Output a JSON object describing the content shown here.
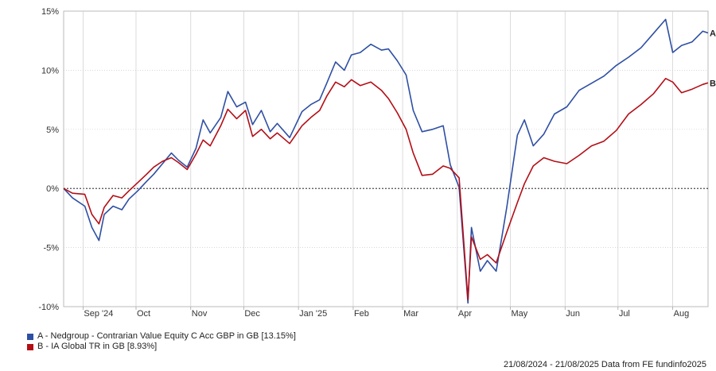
{
  "chart_data": {
    "type": "line",
    "y_unit": "%",
    "ylim": [
      -10,
      15
    ],
    "yticks": [
      15,
      10,
      5,
      0,
      -5,
      -10
    ],
    "ytick_labels": [
      "15%",
      "10%",
      "5%",
      "0%",
      "-5%",
      "-10%"
    ],
    "xlim": [
      "2024-08-21",
      "2025-08-21"
    ],
    "xticks": [
      "2024-09-01",
      "2024-10-01",
      "2024-11-01",
      "2024-12-01",
      "2025-01-01",
      "2025-02-01",
      "2025-03-01",
      "2025-04-01",
      "2025-05-01",
      "2025-06-01",
      "2025-07-01",
      "2025-08-01"
    ],
    "xtick_labels": [
      "Sep '24",
      "Oct",
      "Nov",
      "Dec",
      "Jan '25",
      "Feb",
      "Mar",
      "Apr",
      "May",
      "Jun",
      "Jul",
      "Aug"
    ],
    "grid": true,
    "zero_line": "dotted",
    "series": [
      {
        "name": "A - Nedgroup - Contrarian Value Equity C Acc GBP in GB [13.15%]",
        "end_label": "A",
        "color": "#2e4fa3",
        "x": [
          "2024-08-21",
          "2024-08-26",
          "2024-09-02",
          "2024-09-06",
          "2024-09-10",
          "2024-09-13",
          "2024-09-18",
          "2024-09-23",
          "2024-09-27",
          "2024-10-02",
          "2024-10-07",
          "2024-10-11",
          "2024-10-16",
          "2024-10-21",
          "2024-10-25",
          "2024-10-30",
          "2024-11-04",
          "2024-11-08",
          "2024-11-12",
          "2024-11-18",
          "2024-11-22",
          "2024-11-27",
          "2024-12-02",
          "2024-12-06",
          "2024-12-11",
          "2024-12-16",
          "2024-12-20",
          "2024-12-27",
          "2025-01-03",
          "2025-01-08",
          "2025-01-13",
          "2025-01-17",
          "2025-01-22",
          "2025-01-27",
          "2025-01-31",
          "2025-02-05",
          "2025-02-11",
          "2025-02-17",
          "2025-02-21",
          "2025-02-26",
          "2025-03-03",
          "2025-03-07",
          "2025-03-12",
          "2025-03-18",
          "2025-03-24",
          "2025-03-28",
          "2025-04-02",
          "2025-04-07",
          "2025-04-09",
          "2025-04-14",
          "2025-04-18",
          "2025-04-23",
          "2025-04-29",
          "2025-05-05",
          "2025-05-09",
          "2025-05-14",
          "2025-05-20",
          "2025-05-26",
          "2025-06-02",
          "2025-06-09",
          "2025-06-16",
          "2025-06-23",
          "2025-06-30",
          "2025-07-07",
          "2025-07-14",
          "2025-07-21",
          "2025-07-28",
          "2025-08-01",
          "2025-08-06",
          "2025-08-12",
          "2025-08-18",
          "2025-08-21"
        ],
        "values": [
          0.0,
          -0.8,
          -1.5,
          -3.3,
          -4.4,
          -2.2,
          -1.5,
          -1.8,
          -0.9,
          -0.2,
          0.6,
          1.2,
          2.1,
          3.0,
          2.4,
          1.8,
          3.4,
          5.8,
          4.7,
          6.0,
          8.2,
          6.9,
          7.3,
          5.4,
          6.6,
          4.8,
          5.5,
          4.3,
          6.5,
          7.1,
          7.5,
          8.9,
          10.7,
          10.0,
          11.3,
          11.5,
          12.2,
          11.7,
          11.8,
          10.8,
          9.6,
          6.6,
          4.8,
          5.0,
          5.3,
          2.0,
          0.1,
          -9.7,
          -3.3,
          -7.0,
          -6.1,
          -7.0,
          -1.6,
          4.5,
          5.8,
          3.6,
          4.6,
          6.3,
          6.9,
          8.3,
          8.9,
          9.5,
          10.4,
          11.1,
          11.9,
          13.1,
          14.3,
          11.5,
          12.1,
          12.4,
          13.3,
          13.15
        ]
      },
      {
        "name": "B - IA Global TR in GB [8.93%]",
        "end_label": "B",
        "color": "#b30e16",
        "x": [
          "2024-08-21",
          "2024-08-26",
          "2024-09-02",
          "2024-09-06",
          "2024-09-10",
          "2024-09-13",
          "2024-09-18",
          "2024-09-23",
          "2024-09-27",
          "2024-10-02",
          "2024-10-07",
          "2024-10-11",
          "2024-10-16",
          "2024-10-21",
          "2024-10-25",
          "2024-10-30",
          "2024-11-04",
          "2024-11-08",
          "2024-11-12",
          "2024-11-18",
          "2024-11-22",
          "2024-11-27",
          "2024-12-02",
          "2024-12-06",
          "2024-12-11",
          "2024-12-16",
          "2024-12-20",
          "2024-12-27",
          "2025-01-03",
          "2025-01-08",
          "2025-01-13",
          "2025-01-17",
          "2025-01-22",
          "2025-01-27",
          "2025-01-31",
          "2025-02-05",
          "2025-02-11",
          "2025-02-17",
          "2025-02-21",
          "2025-02-26",
          "2025-03-03",
          "2025-03-07",
          "2025-03-12",
          "2025-03-18",
          "2025-03-24",
          "2025-03-28",
          "2025-04-02",
          "2025-04-07",
          "2025-04-09",
          "2025-04-14",
          "2025-04-18",
          "2025-04-23",
          "2025-04-29",
          "2025-05-05",
          "2025-05-09",
          "2025-05-14",
          "2025-05-20",
          "2025-05-26",
          "2025-06-02",
          "2025-06-09",
          "2025-06-16",
          "2025-06-23",
          "2025-06-30",
          "2025-07-07",
          "2025-07-14",
          "2025-07-21",
          "2025-07-28",
          "2025-08-01",
          "2025-08-06",
          "2025-08-12",
          "2025-08-18",
          "2025-08-21"
        ],
        "values": [
          0.0,
          -0.4,
          -0.5,
          -2.2,
          -3.0,
          -1.6,
          -0.6,
          -0.8,
          -0.2,
          0.5,
          1.2,
          1.8,
          2.3,
          2.6,
          2.2,
          1.6,
          2.9,
          4.1,
          3.6,
          5.3,
          6.7,
          5.9,
          6.6,
          4.4,
          5.0,
          4.2,
          4.7,
          3.8,
          5.3,
          6.0,
          6.6,
          7.8,
          9.0,
          8.6,
          9.2,
          8.7,
          9.0,
          8.3,
          7.6,
          6.4,
          5.0,
          3.0,
          1.1,
          1.2,
          1.9,
          1.7,
          0.9,
          -9.4,
          -4.1,
          -6.0,
          -5.6,
          -6.3,
          -3.7,
          -1.2,
          0.4,
          1.9,
          2.6,
          2.3,
          2.1,
          2.8,
          3.6,
          4.0,
          4.9,
          6.3,
          7.1,
          8.0,
          9.3,
          9.0,
          8.1,
          8.4,
          8.8,
          8.93
        ]
      }
    ],
    "legend_position": "bottom-left",
    "legend": [
      {
        "label": "A - Nedgroup - Contrarian Value Equity C Acc GBP in GB [13.15%]",
        "color": "#2e4fa3"
      },
      {
        "label": "B - IA Global TR in GB [8.93%]",
        "color": "#b30e16"
      }
    ],
    "footer": "21/08/2024 - 21/08/2025 Data from FE fundinfo2025"
  }
}
